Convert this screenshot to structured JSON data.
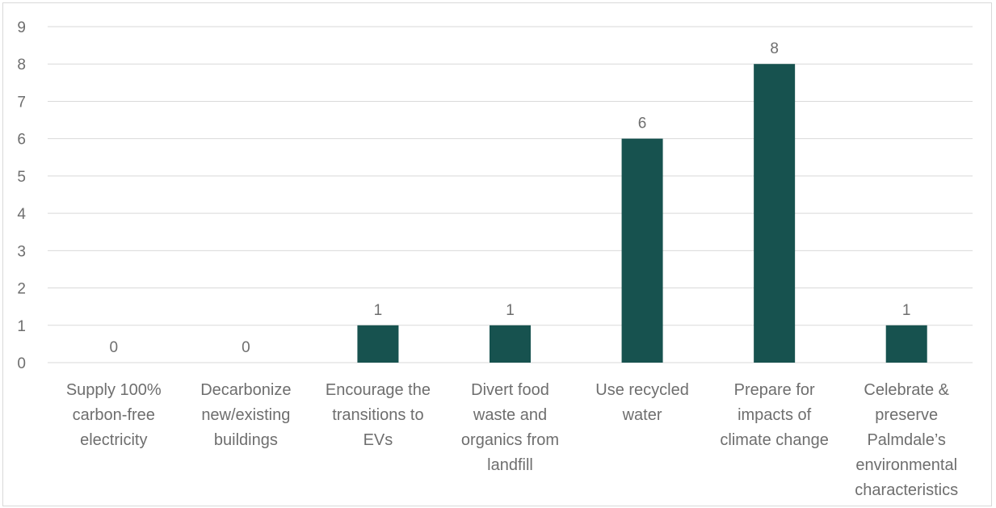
{
  "chart_data": {
    "type": "bar",
    "categories": [
      [
        "Supply 100%",
        "carbon-free",
        "electricity"
      ],
      [
        "Decarbonize",
        "new/existing",
        "buildings"
      ],
      [
        "Encourage the",
        "transitions to",
        "EVs"
      ],
      [
        "Divert food",
        "waste and",
        "organics from",
        "landfill"
      ],
      [
        "Use recycled",
        "water"
      ],
      [
        "Prepare for",
        "impacts of",
        "climate change"
      ],
      [
        "Celebrate &",
        "preserve",
        "Palmdale’s",
        "environmental",
        "characteristics"
      ]
    ],
    "values": [
      0,
      0,
      1,
      1,
      6,
      8,
      1
    ],
    "data_labels": [
      "0",
      "0",
      "1",
      "1",
      "6",
      "8",
      "1"
    ],
    "ylim": [
      0,
      9
    ],
    "yticks": [
      "0",
      "1",
      "2",
      "3",
      "4",
      "5",
      "6",
      "7",
      "8",
      "9"
    ],
    "grid": true,
    "legend": "none",
    "bar_color": "#17524f",
    "title": "",
    "xlabel": "",
    "ylabel": ""
  }
}
